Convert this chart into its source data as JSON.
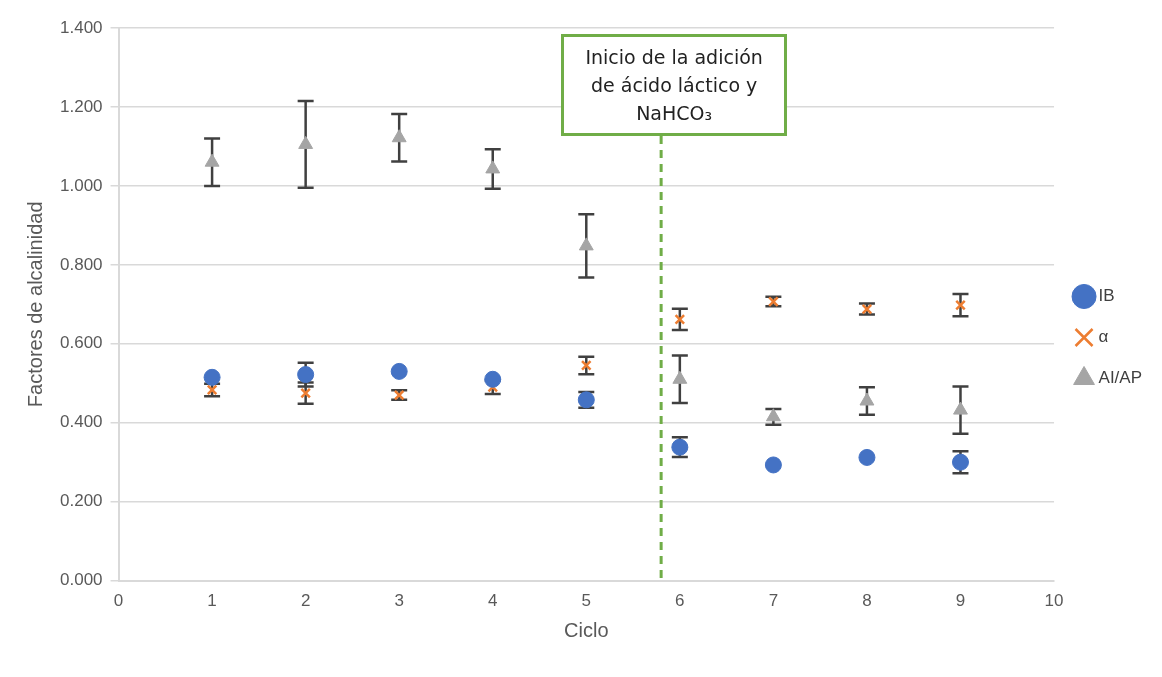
{
  "chart_data": {
    "type": "scatter",
    "xlabel": "Ciclo",
    "ylabel": "Factores de alcalinidad",
    "x": [
      1,
      2,
      3,
      4,
      5,
      6,
      7,
      8,
      9
    ],
    "series": [
      {
        "name": "IB",
        "color": "#4472c4",
        "marker": "circle",
        "values": [
          0.515,
          0.522,
          0.53,
          0.51,
          0.458,
          0.338,
          0.293,
          0.312,
          0.3
        ],
        "errors": [
          null,
          0.03,
          null,
          null,
          0.02,
          0.025,
          null,
          null,
          0.028
        ]
      },
      {
        "name": "α",
        "color": "#ed7d31",
        "marker": "cross",
        "values": [
          0.483,
          0.475,
          0.47,
          0.49,
          0.545,
          0.662,
          0.707,
          0.688,
          0.698
        ],
        "errors": [
          0.016,
          0.027,
          0.012,
          0.017,
          0.022,
          0.027,
          0.012,
          0.014,
          0.028
        ]
      },
      {
        "name": "AI/AP",
        "color": "#a5a5a5",
        "marker": "triangle",
        "values": [
          1.06,
          1.105,
          1.122,
          1.043,
          0.848,
          0.51,
          0.415,
          0.455,
          0.432
        ],
        "errors": [
          0.06,
          0.11,
          0.06,
          0.05,
          0.08,
          0.06,
          0.02,
          0.035,
          0.06
        ]
      }
    ],
    "xlim": [
      0,
      10
    ],
    "xticks": [
      0,
      1,
      2,
      3,
      4,
      5,
      6,
      7,
      8,
      9,
      10
    ],
    "ylim": [
      0,
      1.4
    ],
    "yticks": [
      {
        "value": 0,
        "label": "0.000"
      },
      {
        "value": 0.2,
        "label": "0.200"
      },
      {
        "value": 0.4,
        "label": "0.400"
      },
      {
        "value": 0.6,
        "label": "0.600"
      },
      {
        "value": 0.8,
        "label": "0.800"
      },
      {
        "value": 1.0,
        "label": "1.000"
      },
      {
        "value": 1.2,
        "label": "1.200"
      },
      {
        "value": 1.4,
        "label": "1.400"
      }
    ],
    "ref_lines": [
      {
        "axis": "x",
        "value": 5.8,
        "label": "Inicio de la adición de ácido láctico y NaHCO₃",
        "color": "#70ad47",
        "line_style": "dashed"
      }
    ],
    "grid": "y",
    "legend": "right"
  }
}
